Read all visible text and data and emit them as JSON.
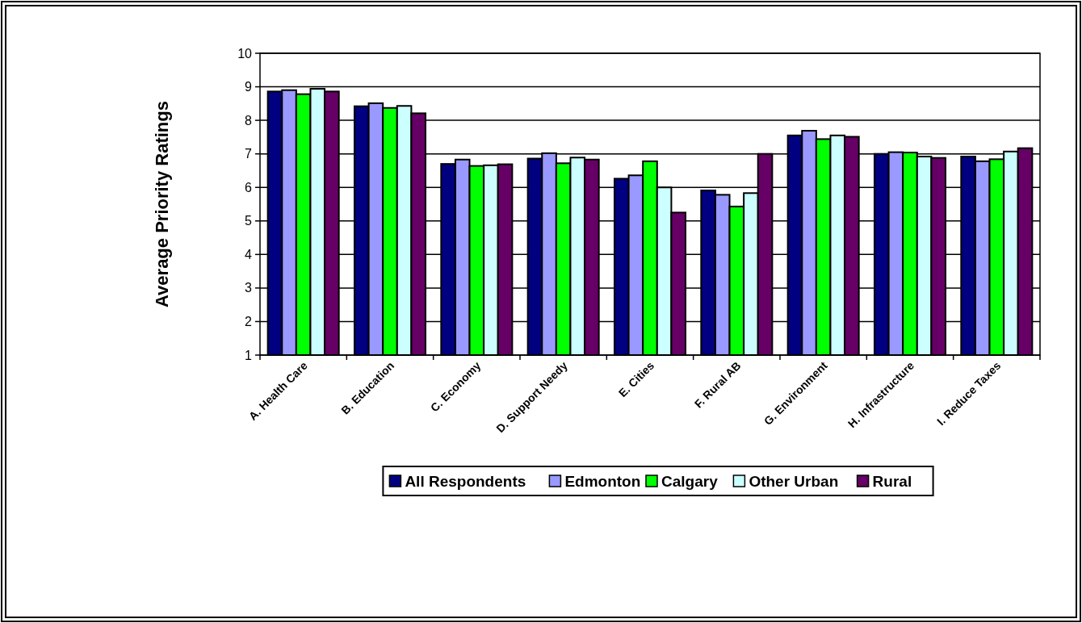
{
  "chart_data": {
    "type": "bar",
    "ylabel": "Average Priority Ratings",
    "categories": [
      "A. Health Care",
      "B. Education",
      "C. Economy",
      "D. Support Needy",
      "E. Cities",
      "F. Rural AB",
      "G. Environment",
      "H. Infrastructure",
      "I. Reduce Taxes"
    ],
    "series": [
      {
        "name": "All Respondents",
        "color": "#000080",
        "values": [
          8.86,
          8.42,
          6.7,
          6.86,
          6.26,
          5.91,
          7.55,
          7.0,
          6.92
        ]
      },
      {
        "name": "Edmonton",
        "color": "#9999ff",
        "values": [
          8.9,
          8.51,
          6.83,
          7.02,
          6.36,
          5.78,
          7.69,
          7.05,
          6.78
        ]
      },
      {
        "name": "Calgary",
        "color": "#00ff00",
        "values": [
          8.78,
          8.37,
          6.64,
          6.72,
          6.78,
          5.43,
          7.44,
          7.04,
          6.84
        ]
      },
      {
        "name": "Other Urban",
        "color": "#ccffff",
        "values": [
          8.94,
          8.43,
          6.66,
          6.89,
          6.0,
          5.83,
          7.55,
          6.92,
          7.07
        ]
      },
      {
        "name": "Rural",
        "color": "#660066",
        "values": [
          8.86,
          8.21,
          6.69,
          6.83,
          5.25,
          7.0,
          7.51,
          6.88,
          7.17
        ]
      }
    ],
    "ylim": [
      1,
      10
    ],
    "yticks": [
      1,
      2,
      3,
      4,
      5,
      6,
      7,
      8,
      9,
      10
    ],
    "grid": "y",
    "legend": "bottom"
  }
}
